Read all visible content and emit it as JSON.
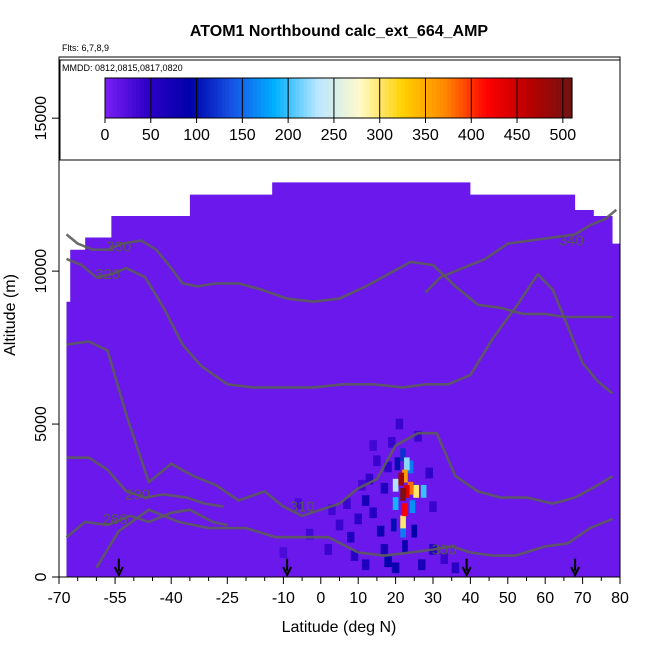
{
  "chart_data": {
    "type": "heatmap",
    "title": "ATOM1 Northbound calc_ext_664_AMP",
    "notes": [
      "Flts: 6,7,8,9",
      "MMDD: 0812,0815,0817,0820"
    ],
    "xlabel": "Latitude (deg N)",
    "ylabel": "Altitude (m)",
    "xlim": [
      -70,
      80
    ],
    "ylim": [
      0,
      17000
    ],
    "xticks": [
      -70,
      -55,
      -40,
      -25,
      -10,
      0,
      10,
      20,
      30,
      40,
      50,
      60,
      70,
      80
    ],
    "xticks_minor": [
      -65,
      -60,
      -50,
      -45,
      -35,
      -30,
      -20,
      -15,
      -5,
      5,
      15,
      25,
      35,
      45,
      55,
      65,
      75
    ],
    "yticks": [
      0,
      5000,
      10000,
      15000
    ],
    "colorbar": {
      "range": [
        0,
        510
      ],
      "ticks": [
        0,
        50,
        100,
        150,
        200,
        250,
        300,
        350,
        400,
        450,
        500
      ],
      "colors": [
        "#7a1ff5",
        "#2e00c8",
        "#0000a8",
        "#1654e6",
        "#00b0ff",
        "#b9e6ff",
        "#fffacc",
        "#ffd200",
        "#ff8a00",
        "#ff0000",
        "#b80000",
        "#6e1414"
      ]
    },
    "background_value": 10,
    "data_envelope": {
      "lat": [
        -68,
        -67,
        -63,
        -56,
        -43,
        -35,
        -20,
        -13,
        10,
        40,
        45,
        59,
        68,
        73,
        78,
        80
      ],
      "top": [
        9000,
        10700,
        11100,
        11800,
        11800,
        12500,
        12500,
        12900,
        12900,
        12500,
        12500,
        12500,
        12000,
        11800,
        10900,
        8000
      ]
    },
    "hotspot_cells": [
      {
        "lat": 21.5,
        "alt": 3200,
        "value": 480
      },
      {
        "lat": 22.0,
        "alt": 2700,
        "value": 500
      },
      {
        "lat": 23.0,
        "alt": 2800,
        "value": 440
      },
      {
        "lat": 24.0,
        "alt": 2900,
        "value": 380
      },
      {
        "lat": 25.5,
        "alt": 2800,
        "value": 300
      },
      {
        "lat": 27.5,
        "alt": 2800,
        "value": 200
      },
      {
        "lat": 22.5,
        "alt": 3300,
        "value": 360
      },
      {
        "lat": 23.0,
        "alt": 3700,
        "value": 220
      },
      {
        "lat": 22.5,
        "alt": 2200,
        "value": 420
      },
      {
        "lat": 22.0,
        "alt": 1800,
        "value": 300
      },
      {
        "lat": 22.0,
        "alt": 1500,
        "value": 160
      },
      {
        "lat": 20.0,
        "alt": 3000,
        "value": 230
      },
      {
        "lat": 20.0,
        "alt": 2400,
        "value": 190
      },
      {
        "lat": 24.0,
        "alt": 3600,
        "value": 160
      },
      {
        "lat": 24.5,
        "alt": 2300,
        "value": 170
      },
      {
        "lat": 22.0,
        "alt": 4000,
        "value": 120
      },
      {
        "lat": 20.5,
        "alt": 3700,
        "value": 100
      },
      {
        "lat": 22.5,
        "alt": 1000,
        "value": 80
      },
      {
        "lat": 19.5,
        "alt": 1700,
        "value": 100
      },
      {
        "lat": 25.0,
        "alt": 1500,
        "value": 90
      }
    ],
    "lowlevel_cells": [
      {
        "lat": 8,
        "alt": 1300,
        "value": 60
      },
      {
        "lat": 10,
        "alt": 1900,
        "value": 50
      },
      {
        "lat": 12,
        "alt": 2500,
        "value": 70
      },
      {
        "lat": 14,
        "alt": 2100,
        "value": 55
      },
      {
        "lat": 16,
        "alt": 1500,
        "value": 80
      },
      {
        "lat": 17,
        "alt": 2900,
        "value": 60
      },
      {
        "lat": 18,
        "alt": 3600,
        "value": 45
      },
      {
        "lat": 15,
        "alt": 3800,
        "value": 40
      },
      {
        "lat": 19,
        "alt": 4400,
        "value": 40
      },
      {
        "lat": 21,
        "alt": 5000,
        "value": 40
      },
      {
        "lat": 13,
        "alt": 3200,
        "value": 45
      },
      {
        "lat": 11,
        "alt": 3000,
        "value": 35
      },
      {
        "lat": 7,
        "alt": 2400,
        "value": 40
      },
      {
        "lat": 9,
        "alt": 700,
        "value": 55
      },
      {
        "lat": 12,
        "alt": 400,
        "value": 60
      },
      {
        "lat": 17,
        "alt": 900,
        "value": 70
      },
      {
        "lat": 18,
        "alt": 500,
        "value": 90
      },
      {
        "lat": 20,
        "alt": 300,
        "value": 80
      },
      {
        "lat": 27,
        "alt": 400,
        "value": 70
      },
      {
        "lat": 30,
        "alt": 900,
        "value": 60
      },
      {
        "lat": 33,
        "alt": 600,
        "value": 40
      },
      {
        "lat": 5,
        "alt": 1700,
        "value": 40
      },
      {
        "lat": 3,
        "alt": 2200,
        "value": 35
      },
      {
        "lat": 14,
        "alt": 4300,
        "value": 35
      },
      {
        "lat": 30,
        "alt": 2300,
        "value": 40
      },
      {
        "lat": 29,
        "alt": 3400,
        "value": 45
      },
      {
        "lat": 26,
        "alt": 4600,
        "value": 40
      },
      {
        "lat": 36,
        "alt": 300,
        "value": 50
      },
      {
        "lat": -3,
        "alt": 1400,
        "value": 35
      },
      {
        "lat": 2,
        "alt": 900,
        "value": 40
      },
      {
        "lat": -6,
        "alt": 2400,
        "value": 30
      },
      {
        "lat": -10,
        "alt": 800,
        "value": 30
      }
    ],
    "contours": [
      {
        "label": "280",
        "label_lat": -55,
        "label_alt": 1900,
        "lat": [
          -68,
          -63,
          -57,
          -51,
          -46,
          -40,
          -35,
          -29,
          -25
        ],
        "alt": [
          1300,
          1800,
          1700,
          2000,
          1800,
          2100,
          2200,
          1800,
          1700
        ]
      },
      {
        "label": "290",
        "label_lat": -49,
        "label_alt": 2700,
        "lat": [
          -68,
          -62,
          -57,
          -52,
          -47,
          -42,
          -36,
          -31,
          -26
        ],
        "alt": [
          3900,
          3900,
          3500,
          2800,
          2600,
          2700,
          2600,
          2400,
          2300
        ]
      },
      {
        "label": "300",
        "label_lat": 33,
        "label_alt": 900,
        "lat": [
          -60,
          -54,
          -46,
          -38,
          -30,
          -20,
          -12,
          -5,
          2,
          10,
          17,
          24,
          30,
          35,
          40,
          46,
          52,
          60,
          66,
          72,
          78
        ],
        "alt": [
          300,
          1500,
          2200,
          1800,
          1600,
          1600,
          1300,
          1300,
          1300,
          800,
          700,
          800,
          900,
          1000,
          800,
          700,
          700,
          1000,
          1100,
          1600,
          1900
        ]
      },
      {
        "label": "310",
        "label_lat": -5,
        "label_alt": 2300,
        "lat": [
          -68,
          -62,
          -57,
          -52,
          -46,
          -40,
          -34,
          -28,
          -22,
          -15,
          -10,
          -5,
          0,
          5,
          10,
          15,
          20,
          26,
          31,
          36,
          42,
          48,
          55,
          62,
          68,
          74,
          78
        ],
        "alt": [
          7600,
          7700,
          7400,
          5300,
          3100,
          3700,
          3300,
          3000,
          2500,
          2800,
          2300,
          2000,
          2200,
          2400,
          2900,
          3200,
          4300,
          4700,
          4700,
          3300,
          2800,
          2600,
          2600,
          2400,
          2600,
          3000,
          3300
        ]
      },
      {
        "label": "320",
        "label_lat": -57,
        "label_alt": 9900,
        "lat": [
          -68,
          -64,
          -60,
          -56,
          -52,
          -47,
          -42,
          -37,
          -32,
          -25,
          -18,
          -10,
          -2,
          6,
          14,
          22,
          28,
          34,
          40,
          46,
          52,
          58,
          62,
          66,
          70,
          74,
          78
        ],
        "alt": [
          10400,
          10200,
          9800,
          9900,
          10100,
          9800,
          8800,
          7600,
          6900,
          6300,
          6200,
          6200,
          6200,
          6300,
          6300,
          6200,
          6300,
          6300,
          6600,
          7800,
          8800,
          9900,
          9400,
          8200,
          7000,
          6400,
          6000
        ]
      },
      {
        "label": "330",
        "label_lat": -54,
        "label_alt": 10800,
        "lat": [
          -68,
          -65,
          -61,
          -57,
          -53,
          -48,
          -44,
          -40,
          -37,
          -33,
          -28,
          -22,
          -16,
          -9,
          -2,
          5,
          12,
          18,
          24,
          30,
          36,
          42,
          48,
          54,
          60,
          65,
          70,
          74,
          78
        ],
        "alt": [
          11200,
          10900,
          10700,
          10700,
          10900,
          11000,
          10700,
          10100,
          9600,
          9500,
          9600,
          9600,
          9400,
          9100,
          9000,
          9100,
          9500,
          9900,
          10300,
          10200,
          9500,
          8900,
          8800,
          8600,
          8600,
          8500,
          8500,
          8500,
          8500
        ]
      },
      {
        "label": "340",
        "label_lat": 67,
        "label_alt": 11000,
        "lat": [
          28,
          32,
          38,
          44,
          50,
          56,
          62,
          68,
          72,
          76,
          79
        ],
        "alt": [
          9300,
          9800,
          10100,
          10400,
          10900,
          11000,
          11100,
          11200,
          11500,
          11700,
          12000
        ]
      }
    ],
    "flight_markers": [
      -54,
      -9,
      39,
      68
    ]
  }
}
